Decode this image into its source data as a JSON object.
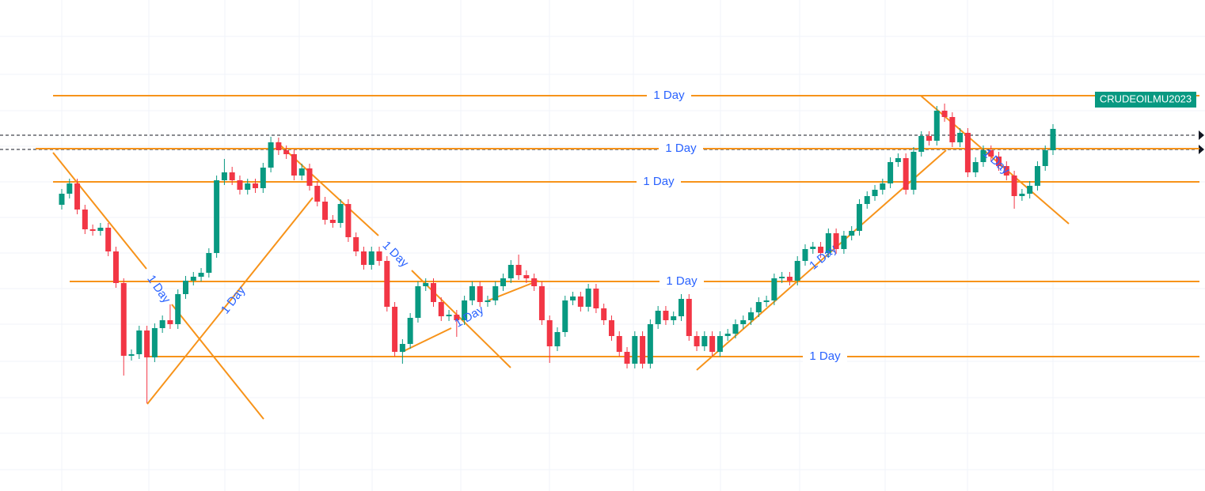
{
  "chart_data": {
    "type": "candlestick",
    "symbol": "CRUDEOILMU2023",
    "up_color": "#089981",
    "down_color": "#f23645",
    "level_color": "#f7931a",
    "ylim": [
      0,
      621
    ],
    "open": [
      362,
      376,
      389,
      356,
      331,
      329,
      333,
      303,
      263,
      171,
      173,
      203,
      169,
      206,
      216,
      211,
      249,
      266,
      271,
      276,
      301,
      393,
      403,
      393,
      381,
      389,
      383,
      409,
      441,
      431,
      426,
      399,
      408,
      386,
      366,
      343,
      339,
      363,
      321,
      303,
      286,
      303,
      291,
      233,
      176,
      186,
      219,
      259,
      263,
      239,
      221,
      223,
      216,
      241,
      259,
      239,
      241,
      259,
      269,
      286,
      273,
      269,
      259,
      216,
      183,
      201,
      241,
      246,
      233,
      256,
      231,
      216,
      196,
      176,
      161,
      196,
      161,
      211,
      228,
      216,
      221,
      243,
      196,
      183,
      196,
      176,
      196,
      199,
      211,
      216,
      226,
      239,
      241,
      269,
      271,
      266,
      291,
      306,
      309,
      301,
      326,
      306,
      323,
      329,
      363,
      373,
      381,
      389,
      416,
      421,
      381,
      429,
      449,
      443,
      481,
      473,
      441,
      453,
      403,
      416,
      431,
      423,
      411,
      399,
      373,
      376,
      386,
      411,
      431
    ],
    "high": [
      382,
      395,
      395,
      362,
      337,
      339,
      339,
      309,
      269,
      179,
      209,
      209,
      212,
      222,
      236,
      255,
      272,
      277,
      282,
      307,
      399,
      420,
      410,
      399,
      395,
      395,
      415,
      448,
      447,
      437,
      432,
      414,
      414,
      392,
      372,
      349,
      369,
      369,
      327,
      309,
      309,
      309,
      297,
      239,
      192,
      225,
      265,
      269,
      269,
      245,
      229,
      229,
      247,
      265,
      265,
      247,
      265,
      275,
      292,
      299,
      279,
      275,
      265,
      222,
      207,
      247,
      252,
      252,
      262,
      262,
      237,
      222,
      202,
      182,
      202,
      202,
      217,
      234,
      234,
      227,
      249,
      249,
      202,
      202,
      202,
      202,
      205,
      217,
      222,
      232,
      245,
      247,
      275,
      277,
      277,
      297,
      312,
      315,
      315,
      332,
      332,
      329,
      335,
      369,
      379,
      387,
      395,
      422,
      427,
      427,
      435,
      455,
      455,
      487,
      490,
      479,
      459,
      459,
      422,
      437,
      437,
      429,
      417,
      405,
      382,
      392,
      417,
      437,
      464
    ],
    "low": [
      356,
      370,
      350,
      325,
      323,
      323,
      297,
      257,
      146,
      165,
      167,
      111,
      163,
      200,
      205,
      205,
      243,
      260,
      265,
      270,
      295,
      387,
      387,
      375,
      375,
      377,
      377,
      403,
      425,
      420,
      393,
      393,
      380,
      360,
      337,
      333,
      333,
      315,
      297,
      280,
      280,
      285,
      227,
      170,
      161,
      180,
      213,
      253,
      233,
      215,
      215,
      195,
      210,
      235,
      233,
      233,
      235,
      253,
      263,
      267,
      263,
      253,
      210,
      162,
      177,
      195,
      235,
      227,
      227,
      225,
      210,
      190,
      170,
      155,
      155,
      155,
      155,
      205,
      210,
      210,
      215,
      190,
      177,
      177,
      170,
      170,
      190,
      193,
      205,
      210,
      220,
      233,
      235,
      263,
      260,
      260,
      285,
      300,
      295,
      295,
      300,
      300,
      317,
      323,
      357,
      367,
      375,
      383,
      410,
      375,
      375,
      423,
      437,
      437,
      467,
      435,
      435,
      397,
      397,
      410,
      417,
      405,
      393,
      357,
      367,
      370,
      380,
      405,
      425
    ],
    "close": [
      376,
      389,
      356,
      331,
      329,
      333,
      303,
      263,
      171,
      173,
      203,
      169,
      206,
      216,
      211,
      249,
      266,
      271,
      276,
      301,
      393,
      403,
      393,
      381,
      389,
      383,
      409,
      441,
      431,
      426,
      399,
      408,
      386,
      366,
      343,
      339,
      363,
      321,
      303,
      286,
      303,
      291,
      233,
      176,
      186,
      219,
      259,
      263,
      239,
      221,
      223,
      216,
      241,
      259,
      239,
      241,
      259,
      269,
      286,
      273,
      269,
      259,
      216,
      183,
      201,
      241,
      246,
      233,
      256,
      231,
      216,
      196,
      176,
      161,
      196,
      161,
      211,
      228,
      216,
      221,
      243,
      196,
      183,
      196,
      176,
      196,
      199,
      211,
      216,
      226,
      239,
      241,
      269,
      271,
      266,
      291,
      306,
      309,
      301,
      326,
      306,
      323,
      329,
      363,
      373,
      381,
      389,
      416,
      421,
      381,
      429,
      449,
      443,
      481,
      473,
      441,
      453,
      403,
      416,
      431,
      423,
      411,
      399,
      373,
      376,
      386,
      411,
      431,
      458
    ],
    "levels": [
      {
        "value": 500,
        "label": "1 Day"
      },
      {
        "value": 433,
        "label": "1 Day"
      },
      {
        "value": 391,
        "label": "1 Day"
      },
      {
        "value": 265,
        "label": "1 Day"
      },
      {
        "value": 170,
        "label": "1 Day"
      }
    ],
    "price_lines": [
      450,
      432
    ],
    "trend_labels": [
      "1 Day",
      "1 Day",
      "1 Day",
      "1 Day",
      "1 Day",
      "1 Day"
    ]
  }
}
